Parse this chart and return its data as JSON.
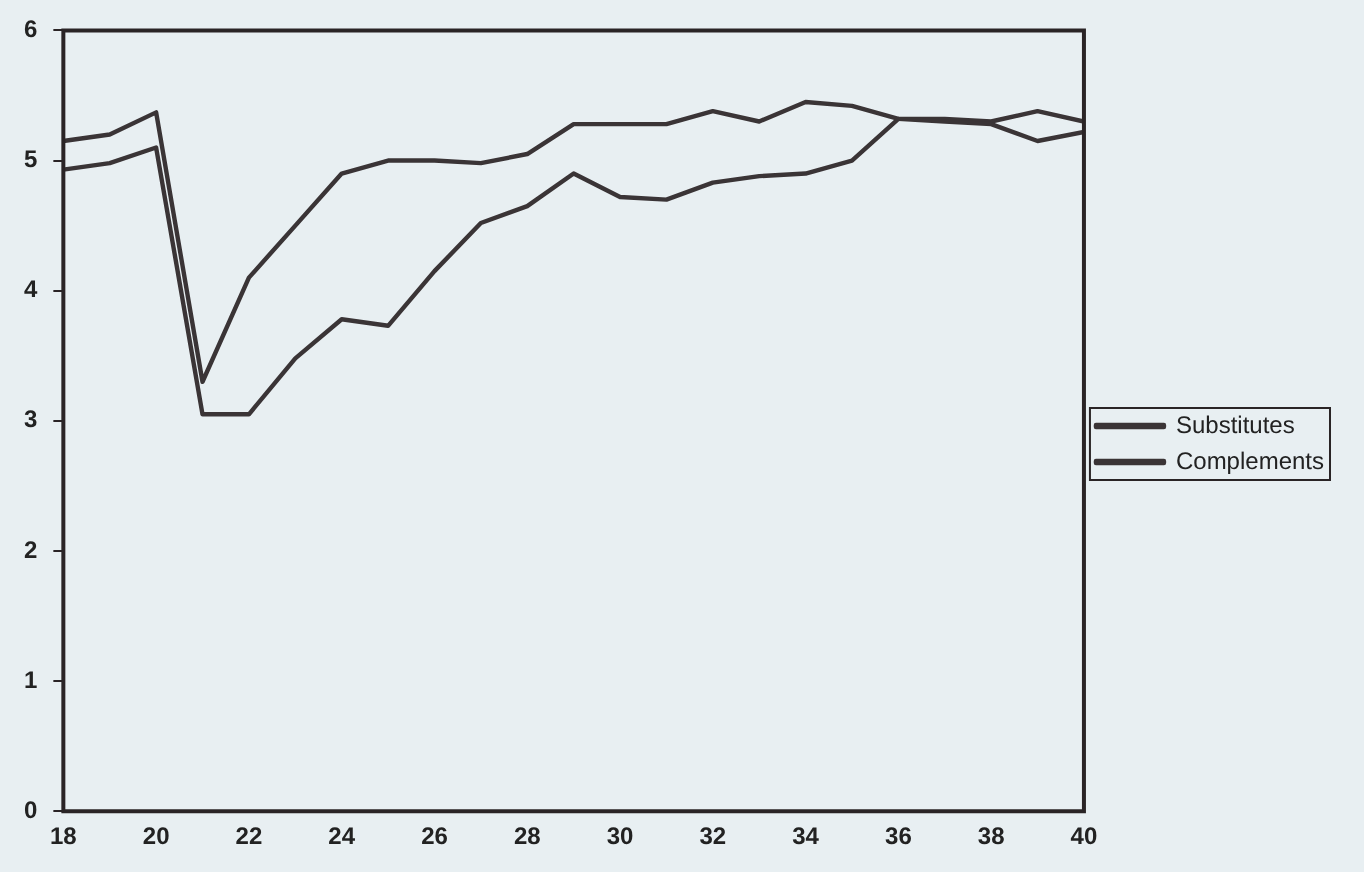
{
  "chart_data": {
    "type": "line",
    "x": [
      18,
      19,
      20,
      21,
      22,
      23,
      24,
      25,
      26,
      27,
      28,
      29,
      30,
      31,
      32,
      33,
      34,
      35,
      36,
      37,
      38,
      39,
      40
    ],
    "series": [
      {
        "name": "Substitutes",
        "color": "#3a3436",
        "values": [
          5.15,
          5.2,
          5.37,
          3.3,
          4.1,
          4.5,
          4.9,
          5.0,
          5.0,
          4.98,
          5.05,
          5.28,
          5.28,
          5.28,
          5.38,
          5.3,
          5.45,
          5.42,
          5.32,
          5.3,
          5.28,
          5.15,
          5.22
        ]
      },
      {
        "name": "Complements",
        "color": "#3a3436",
        "values": [
          4.93,
          4.98,
          5.1,
          3.05,
          3.05,
          3.48,
          3.78,
          3.73,
          4.15,
          4.52,
          4.65,
          4.9,
          4.72,
          4.7,
          4.83,
          4.88,
          4.9,
          5.0,
          5.32,
          5.32,
          5.3,
          5.38,
          5.3
        ]
      }
    ],
    "xlim": [
      18,
      40
    ],
    "xticks": [
      18,
      20,
      22,
      24,
      26,
      28,
      30,
      32,
      34,
      36,
      38,
      40
    ],
    "ylim": [
      0,
      6
    ],
    "yticks": [
      0,
      1,
      2,
      3,
      4,
      5,
      6
    ],
    "grid": false,
    "legend": "right",
    "marker": "none",
    "line_style": "solid"
  }
}
